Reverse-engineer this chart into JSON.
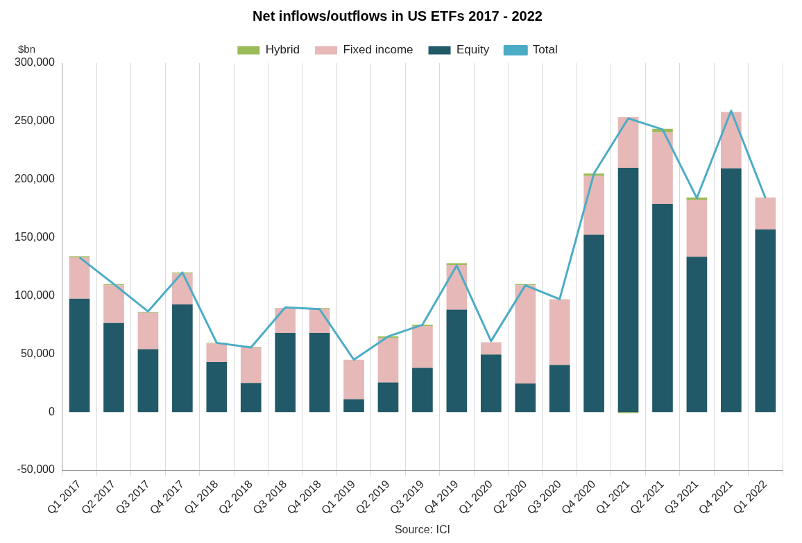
{
  "chart_data": {
    "type": "bar",
    "title": "Net inflows/outflows in US ETFs 2017 - 2022",
    "ylabel": "$bn",
    "stacked": true,
    "categories": [
      "Q1 2017",
      "Q2 2017",
      "Q3 2017",
      "Q4 2017",
      "Q1 2018",
      "Q2 2018",
      "Q3 2018",
      "Q4 2018",
      "Q1 2019",
      "Q2 2019",
      "Q3 2019",
      "Q4 2019",
      "Q1 2020",
      "Q2 2020",
      "Q3 2020",
      "Q4 2020",
      "Q1 2021",
      "Q2 2021",
      "Q3 2021",
      "Q4 2021",
      "Q1 2022"
    ],
    "series": [
      {
        "name": "Equity",
        "color": "#215968",
        "values": [
          97500,
          76500,
          54000,
          92500,
          43000,
          25000,
          68000,
          68000,
          11000,
          25500,
          38000,
          88000,
          49500,
          24500,
          40500,
          152500,
          210000,
          179000,
          133500,
          209500,
          157000
        ]
      },
      {
        "name": "Fixed income",
        "color": "#e6b8b7",
        "values": [
          35500,
          32500,
          31500,
          26500,
          16000,
          30500,
          21500,
          21000,
          34000,
          38000,
          36000,
          38500,
          10500,
          84500,
          56500,
          50500,
          43500,
          61500,
          49000,
          48500,
          27500
        ]
      },
      {
        "name": "Hybrid",
        "color": "#9bbb59",
        "values": [
          1000,
          1000,
          500,
          1000,
          500,
          500,
          null,
          500,
          null,
          1500,
          1000,
          1500,
          null,
          1000,
          null,
          2000,
          -1000,
          3000,
          2000,
          0,
          0
        ]
      },
      {
        "name": "Total",
        "type": "line",
        "color": "#4bacc6",
        "values": [
          133000,
          110000,
          86500,
          120000,
          59500,
          55500,
          90000,
          88500,
          45000,
          65000,
          75000,
          126000,
          61000,
          109000,
          97000,
          205000,
          252500,
          243000,
          184000,
          259000,
          184000
        ]
      }
    ],
    "ylim": [
      -50000,
      300000
    ],
    "yticks": [
      {
        "value": -50000,
        "label": "-50,000"
      },
      {
        "value": 0,
        "label": "0"
      },
      {
        "value": 50000,
        "label": "50,000"
      },
      {
        "value": 100000,
        "label": "100,000"
      },
      {
        "value": 150000,
        "label": "150,000"
      },
      {
        "value": 200000,
        "label": "200,000"
      },
      {
        "value": 250000,
        "label": "250,000"
      },
      {
        "value": 300000,
        "label": "300,000"
      }
    ],
    "grid": "x",
    "legend": "top",
    "marker": "none",
    "line_style": "solid",
    "annotations": [
      "Source: ICI"
    ]
  }
}
